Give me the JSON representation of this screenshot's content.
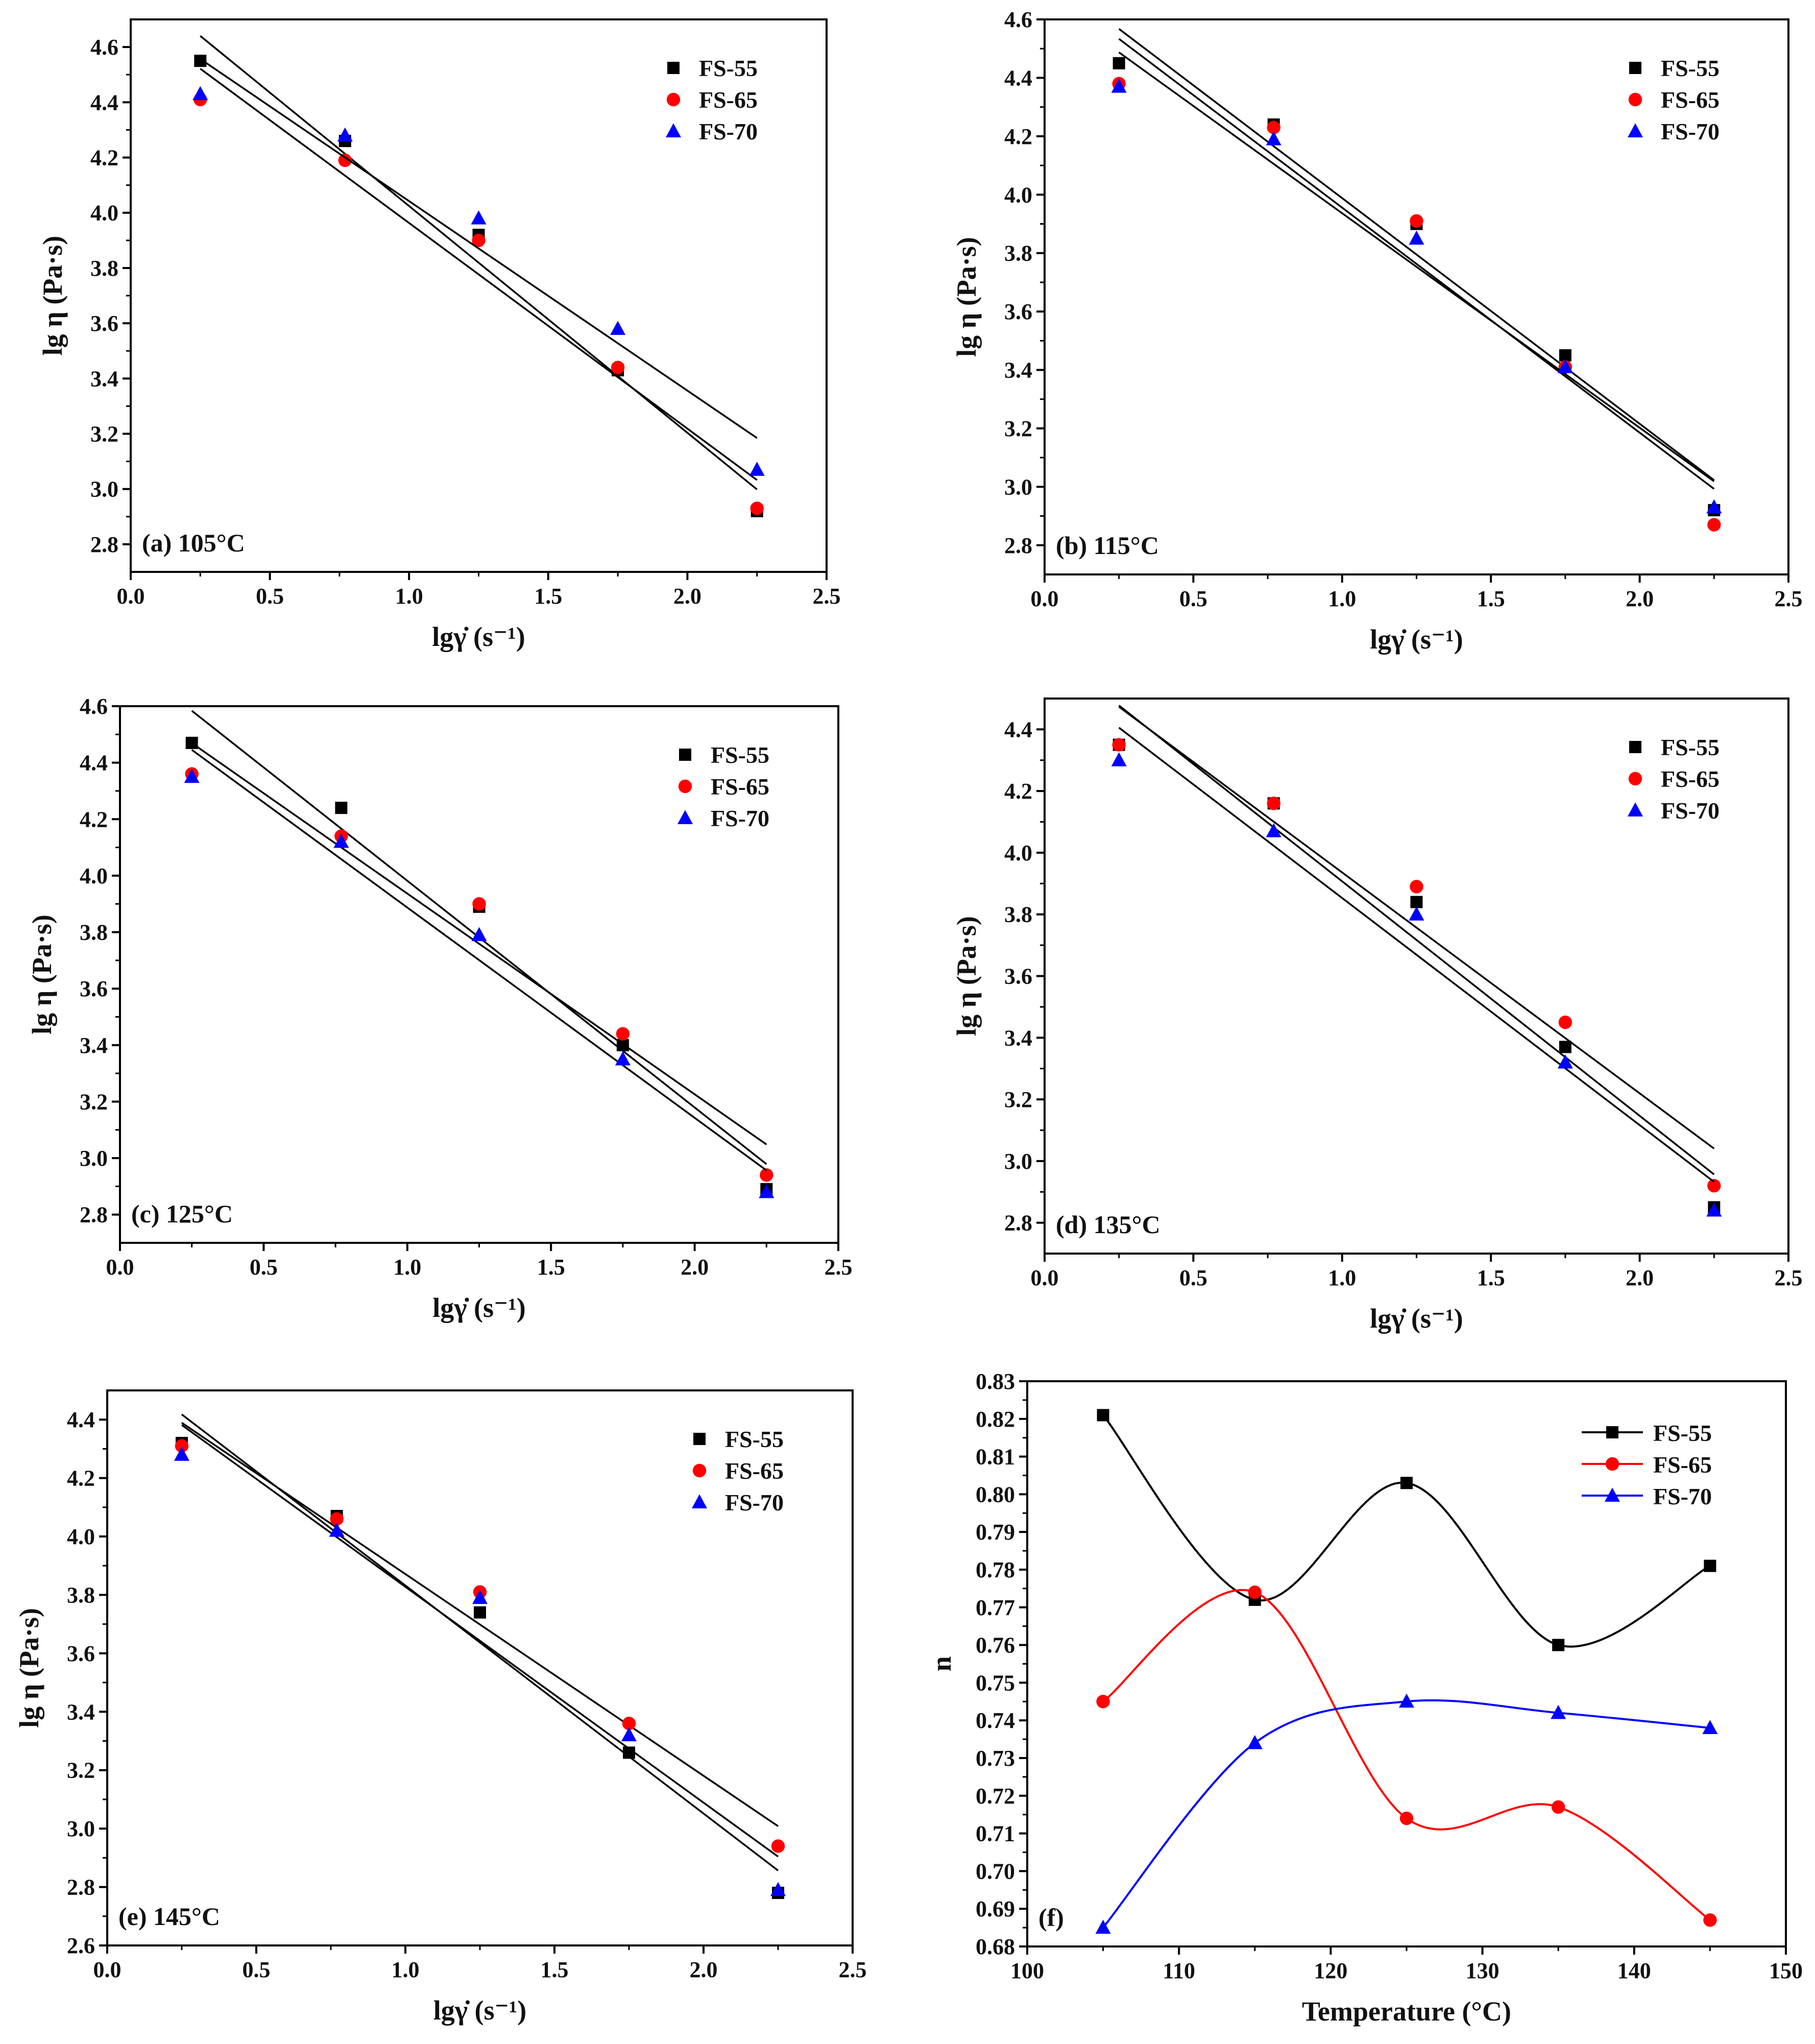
{
  "chart_data": [
    {
      "type": "scatter",
      "panel_label": "(a) 105°C",
      "xlabel": "lgγ̇ (s⁻¹)",
      "ylabel": "lg η  (Pa·s)",
      "xlim": [
        0,
        2.5
      ],
      "ylim": [
        2.7,
        4.7
      ],
      "xticks": [
        "0.0",
        "0.5",
        "1.0",
        "1.5",
        "2.0",
        "2.5"
      ],
      "yticks": [
        "2.8",
        "3.0",
        "3.2",
        "3.4",
        "3.6",
        "3.8",
        "4.0",
        "4.2",
        "4.4",
        "4.6"
      ],
      "legend_position": "top-right",
      "fit_lines": true,
      "x": [
        0.25,
        0.77,
        1.25,
        1.75,
        2.25
      ],
      "series": [
        {
          "name": "FS-55",
          "color": "#000000",
          "marker": "square",
          "values": [
            4.55,
            4.26,
            3.92,
            3.43,
            2.92
          ]
        },
        {
          "name": "FS-65",
          "color": "#ff0000",
          "marker": "circle",
          "values": [
            4.41,
            4.19,
            3.9,
            3.44,
            2.93
          ]
        },
        {
          "name": "FS-70",
          "color": "#0000ff",
          "marker": "triangle",
          "values": [
            4.43,
            4.28,
            3.98,
            3.58,
            3.07
          ]
        }
      ]
    },
    {
      "type": "scatter",
      "panel_label": "(b) 115°C",
      "xlabel": "lgγ̇ (s⁻¹)",
      "ylabel": "lg η  (Pa·s)",
      "xlim": [
        0,
        2.5
      ],
      "ylim": [
        2.7,
        4.6
      ],
      "xticks": [
        "0.0",
        "0.5",
        "1.0",
        "1.5",
        "2.0",
        "2.5"
      ],
      "yticks": [
        "2.8",
        "3.0",
        "3.2",
        "3.4",
        "3.6",
        "3.8",
        "4.0",
        "4.2",
        "4.4",
        "4.6"
      ],
      "legend_position": "top-right",
      "fit_lines": true,
      "x": [
        0.25,
        0.77,
        1.25,
        1.75,
        2.25
      ],
      "series": [
        {
          "name": "FS-55",
          "color": "#000000",
          "marker": "square",
          "values": [
            4.45,
            4.24,
            3.9,
            3.45,
            2.92
          ]
        },
        {
          "name": "FS-65",
          "color": "#ff0000",
          "marker": "circle",
          "values": [
            4.38,
            4.23,
            3.91,
            3.41,
            2.87
          ]
        },
        {
          "name": "FS-70",
          "color": "#0000ff",
          "marker": "triangle",
          "values": [
            4.37,
            4.19,
            3.85,
            3.41,
            2.93
          ]
        }
      ]
    },
    {
      "type": "scatter",
      "panel_label": "(c) 125°C",
      "xlabel": "lgγ̇ (s⁻¹)",
      "ylabel": "lg η  (Pa·s)",
      "xlim": [
        0,
        2.5
      ],
      "ylim": [
        2.7,
        4.6
      ],
      "xticks": [
        "0.0",
        "0.5",
        "1.0",
        "1.5",
        "2.0",
        "2.5"
      ],
      "yticks": [
        "2.8",
        "3.0",
        "3.2",
        "3.4",
        "3.6",
        "3.8",
        "4.0",
        "4.2",
        "4.4",
        "4.6"
      ],
      "legend_position": "top-right",
      "fit_lines": true,
      "x": [
        0.25,
        0.77,
        1.25,
        1.75,
        2.25
      ],
      "series": [
        {
          "name": "FS-55",
          "color": "#000000",
          "marker": "square",
          "values": [
            4.47,
            4.24,
            3.89,
            3.4,
            2.89
          ]
        },
        {
          "name": "FS-65",
          "color": "#ff0000",
          "marker": "circle",
          "values": [
            4.36,
            4.14,
            3.9,
            3.44,
            2.94
          ]
        },
        {
          "name": "FS-70",
          "color": "#0000ff",
          "marker": "triangle",
          "values": [
            4.35,
            4.12,
            3.79,
            3.35,
            2.88
          ]
        }
      ]
    },
    {
      "type": "scatter",
      "panel_label": "(d) 135°C",
      "xlabel": "lgγ̇ (s⁻¹)",
      "ylabel": "lg η   (Pa·s)",
      "xlim": [
        0,
        2.5
      ],
      "ylim": [
        2.7,
        4.5
      ],
      "xticks": [
        "0.0",
        "0.5",
        "1.0",
        "1.5",
        "2.0",
        "2.5"
      ],
      "yticks": [
        "2.8",
        "3.0",
        "3.2",
        "3.4",
        "3.6",
        "3.8",
        "4.0",
        "4.2",
        "4.4"
      ],
      "legend_position": "top-right",
      "fit_lines": true,
      "x": [
        0.25,
        0.77,
        1.25,
        1.75,
        2.25
      ],
      "series": [
        {
          "name": "FS-55",
          "color": "#000000",
          "marker": "square",
          "values": [
            4.35,
            4.16,
            3.84,
            3.37,
            2.85
          ]
        },
        {
          "name": "FS-65",
          "color": "#ff0000",
          "marker": "circle",
          "values": [
            4.35,
            4.16,
            3.89,
            3.45,
            2.92
          ]
        },
        {
          "name": "FS-70",
          "color": "#0000ff",
          "marker": "triangle",
          "values": [
            4.3,
            4.07,
            3.8,
            3.32,
            2.84
          ]
        }
      ]
    },
    {
      "type": "scatter",
      "panel_label": "(e) 145°C",
      "xlabel": "lgγ̇ (s⁻¹)",
      "ylabel": "lg η   (Pa·s)",
      "xlim": [
        0,
        2.5
      ],
      "ylim": [
        2.6,
        4.5
      ],
      "xticks": [
        "0.0",
        "0.5",
        "1.0",
        "1.5",
        "2.0",
        "2.5"
      ],
      "yticks": [
        "2.6",
        "2.8",
        "3.0",
        "3.2",
        "3.4",
        "3.6",
        "3.8",
        "4.0",
        "4.2",
        "4.4"
      ],
      "legend_position": "top-right",
      "fit_lines": true,
      "x": [
        0.25,
        0.77,
        1.25,
        1.75,
        2.25
      ],
      "series": [
        {
          "name": "FS-55",
          "color": "#000000",
          "marker": "square",
          "values": [
            4.32,
            4.07,
            3.74,
            3.26,
            2.78
          ]
        },
        {
          "name": "FS-65",
          "color": "#ff0000",
          "marker": "circle",
          "values": [
            4.31,
            4.06,
            3.81,
            3.36,
            2.94
          ]
        },
        {
          "name": "FS-70",
          "color": "#0000ff",
          "marker": "triangle",
          "values": [
            4.28,
            4.02,
            3.79,
            3.32,
            2.79
          ]
        }
      ]
    },
    {
      "type": "line",
      "panel_label": "(f)",
      "xlabel": "Temperature (°C)",
      "ylabel": "n",
      "xlim": [
        100,
        150
      ],
      "ylim": [
        0.68,
        0.83
      ],
      "xticks": [
        "100",
        "110",
        "120",
        "130",
        "140",
        "150"
      ],
      "yticks": [
        "0.68",
        "0.69",
        "0.70",
        "0.71",
        "0.72",
        "0.73",
        "0.74",
        "0.75",
        "0.76",
        "0.77",
        "0.78",
        "0.79",
        "0.80",
        "0.81",
        "0.82",
        "0.83"
      ],
      "legend_position": "top-right",
      "fit_lines": false,
      "x": [
        105,
        115,
        125,
        135,
        145
      ],
      "series": [
        {
          "name": "FS-55",
          "color": "#000000",
          "marker": "square",
          "values": [
            0.821,
            0.772,
            0.803,
            0.76,
            0.781
          ]
        },
        {
          "name": "FS-65",
          "color": "#ff0000",
          "marker": "circle",
          "values": [
            0.745,
            0.774,
            0.714,
            0.717,
            0.687
          ]
        },
        {
          "name": "FS-70",
          "color": "#0000ff",
          "marker": "triangle",
          "values": [
            0.685,
            0.734,
            0.745,
            0.742,
            0.738
          ]
        }
      ]
    }
  ]
}
